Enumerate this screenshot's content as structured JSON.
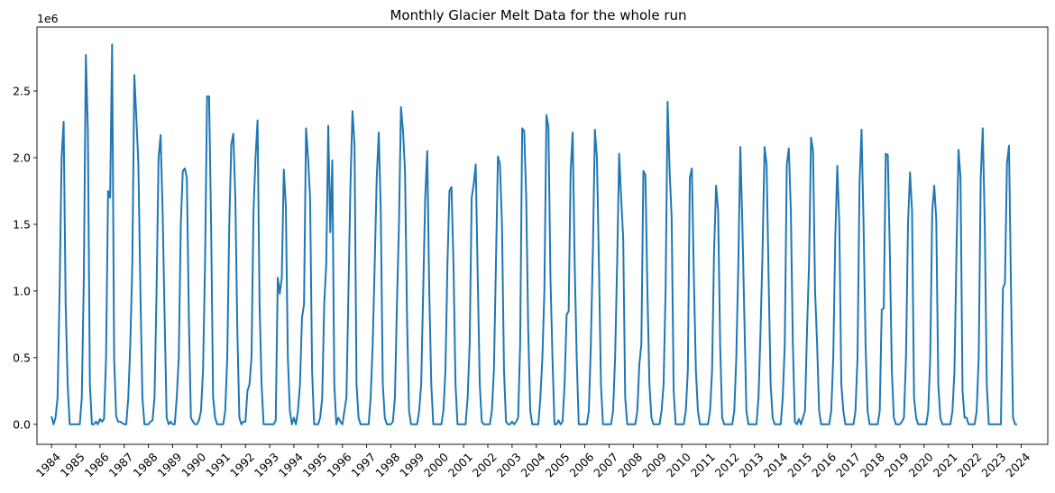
{
  "chart_data": {
    "type": "line",
    "title": "Monthly Glacier Melt Data for the whole run",
    "xlabel": "",
    "ylabel": "",
    "y_offset_label": "1e6",
    "xlim": [
      1983.4,
      2025.1
    ],
    "ylim": [
      -150000,
      2980000
    ],
    "x_ticks": [
      "1984",
      "1985",
      "1986",
      "1987",
      "1988",
      "1989",
      "1990",
      "1991",
      "1992",
      "1993",
      "1994",
      "1995",
      "1996",
      "1997",
      "1998",
      "1999",
      "2000",
      "2001",
      "2002",
      "2003",
      "2004",
      "2005",
      "2006",
      "2007",
      "2008",
      "2009",
      "2010",
      "2011",
      "2012",
      "2013",
      "2014",
      "2015",
      "2016",
      "2017",
      "2018",
      "2019",
      "2020",
      "2021",
      "2022",
      "2023",
      "2024"
    ],
    "y_ticks": [
      {
        "value": 0,
        "label": "0.0"
      },
      {
        "value": 500000,
        "label": "0.5"
      },
      {
        "value": 1000000,
        "label": "1.0"
      },
      {
        "value": 1500000,
        "label": "1.5"
      },
      {
        "value": 2000000,
        "label": "2.0"
      },
      {
        "value": 2500000,
        "label": "2.5"
      }
    ],
    "grid": false,
    "line_color": "#1f77b4",
    "series": [
      {
        "x_start": 1984.0,
        "step": 0.0833333,
        "values": [
          60000,
          0,
          50000,
          200000,
          1000000,
          2000000,
          2270000,
          900000,
          300000,
          0,
          0,
          0,
          0,
          0,
          0,
          200000,
          1100000,
          2770000,
          2200000,
          300000,
          0,
          0,
          20000,
          0,
          40000,
          20000,
          40000,
          500000,
          1750000,
          1700000,
          2850000,
          500000,
          60000,
          20000,
          20000,
          10000,
          0,
          0,
          200000,
          600000,
          1200000,
          2620000,
          2300000,
          1950000,
          1000000,
          200000,
          0,
          0,
          0,
          20000,
          30000,
          200000,
          1000000,
          2000000,
          2170000,
          1600000,
          800000,
          50000,
          0,
          20000,
          0,
          0,
          200000,
          500000,
          1500000,
          1900000,
          1920000,
          1850000,
          800000,
          50000,
          20000,
          0,
          0,
          30000,
          100000,
          400000,
          1200000,
          2460000,
          2460000,
          1500000,
          200000,
          50000,
          0,
          0,
          0,
          0,
          100000,
          500000,
          1500000,
          2100000,
          2180000,
          1700000,
          700000,
          50000,
          0,
          20000,
          20000,
          250000,
          300000,
          500000,
          1600000,
          2000000,
          2280000,
          900000,
          300000,
          0,
          0,
          0,
          0,
          0,
          0,
          30000,
          1100000,
          980000,
          1100000,
          1910000,
          1640000,
          500000,
          100000,
          0,
          50000,
          0,
          100000,
          300000,
          800000,
          900000,
          2220000,
          2000000,
          1700000,
          400000,
          0,
          0,
          0,
          50000,
          200000,
          900000,
          1200000,
          2240000,
          1440000,
          1980000,
          300000,
          0,
          50000,
          20000,
          0,
          100000,
          200000,
          1000000,
          1800000,
          2350000,
          2100000,
          300000,
          50000,
          0,
          0,
          0,
          0,
          0,
          200000,
          600000,
          1200000,
          1850000,
          2190000,
          1600000,
          300000,
          50000,
          0,
          0,
          0,
          20000,
          200000,
          900000,
          1500000,
          2380000,
          2200000,
          1900000,
          800000,
          100000,
          0,
          0,
          0,
          0,
          100000,
          300000,
          1000000,
          1700000,
          2050000,
          1000000,
          300000,
          0,
          0,
          0,
          0,
          0,
          100000,
          400000,
          1200000,
          1750000,
          1780000,
          1200000,
          300000,
          0,
          0,
          0,
          0,
          0,
          200000,
          600000,
          1700000,
          1800000,
          1950000,
          1100000,
          300000,
          20000,
          0,
          0,
          0,
          0,
          100000,
          400000,
          1200000,
          2010000,
          1950000,
          1500000,
          400000,
          20000,
          0,
          0,
          20000,
          0,
          20000,
          50000,
          600000,
          2220000,
          2200000,
          1700000,
          700000,
          100000,
          0,
          0,
          0,
          0,
          200000,
          500000,
          1000000,
          2320000,
          2230000,
          1100000,
          500000,
          0,
          0,
          30000,
          0,
          20000,
          300000,
          820000,
          850000,
          1900000,
          2190000,
          1200000,
          500000,
          0,
          0,
          0,
          0,
          0,
          100000,
          600000,
          1300000,
          2210000,
          2000000,
          1200000,
          300000,
          0,
          0,
          0,
          0,
          0,
          100000,
          500000,
          1200000,
          2030000,
          1700000,
          1400000,
          200000,
          0,
          0,
          0,
          0,
          0,
          100000,
          450000,
          600000,
          1900000,
          1870000,
          1000000,
          300000,
          50000,
          0,
          0,
          0,
          0,
          100000,
          300000,
          1000000,
          2420000,
          1900000,
          1550000,
          250000,
          0,
          0,
          0,
          0,
          0,
          100000,
          400000,
          1850000,
          1920000,
          1100000,
          400000,
          100000,
          0,
          0,
          0,
          0,
          0,
          100000,
          400000,
          1300000,
          1790000,
          1600000,
          600000,
          50000,
          0,
          0,
          0,
          0,
          0,
          100000,
          500000,
          1200000,
          2080000,
          1500000,
          800000,
          100000,
          0,
          0,
          0,
          0,
          0,
          200000,
          700000,
          1300000,
          2080000,
          1950000,
          1100000,
          300000,
          50000,
          0,
          0,
          0,
          0,
          200000,
          600000,
          1950000,
          2070000,
          1600000,
          600000,
          20000,
          0,
          40000,
          0,
          50000,
          100000,
          700000,
          1200000,
          2150000,
          2050000,
          1000000,
          600000,
          100000,
          0,
          0,
          0,
          0,
          0,
          100000,
          500000,
          1400000,
          1940000,
          1500000,
          300000,
          100000,
          0,
          0,
          0,
          0,
          0,
          100000,
          500000,
          1800000,
          2210000,
          1500000,
          600000,
          100000,
          0,
          0,
          0,
          0,
          0,
          100000,
          860000,
          870000,
          2030000,
          2020000,
          1300000,
          400000,
          50000,
          0,
          0,
          0,
          20000,
          50000,
          500000,
          1500000,
          1890000,
          1600000,
          200000,
          50000,
          0,
          0,
          0,
          0,
          0,
          100000,
          500000,
          1600000,
          1790000,
          1530000,
          300000,
          50000,
          0,
          0,
          0,
          0,
          0,
          100000,
          400000,
          1300000,
          2060000,
          1850000,
          250000,
          50000,
          50000,
          0,
          0,
          0,
          0,
          100000,
          500000,
          1850000,
          2220000,
          1500000,
          300000,
          0,
          0,
          0,
          0,
          0,
          0,
          0,
          1020000,
          1060000,
          1960000,
          2090000,
          1000000,
          50000,
          0,
          0
        ]
      }
    ]
  }
}
